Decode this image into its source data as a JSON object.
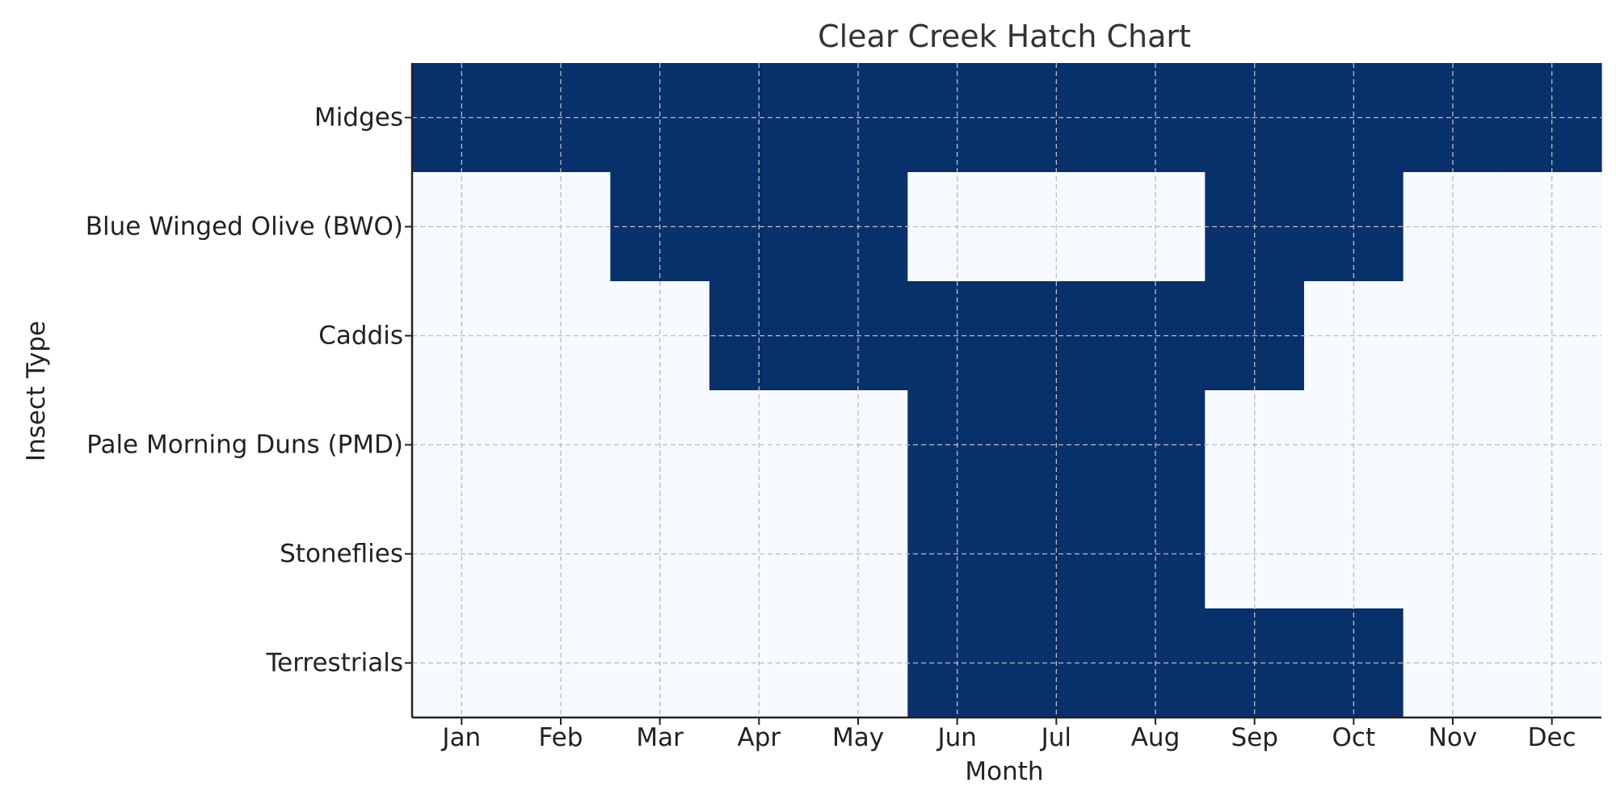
{
  "chart_data": {
    "type": "heatmap",
    "title": "Clear Creek Hatch Chart",
    "xlabel": "Month",
    "ylabel": "Insect Type",
    "x_categories": [
      "Jan",
      "Feb",
      "Mar",
      "Apr",
      "May",
      "Jun",
      "Jul",
      "Aug",
      "Sep",
      "Oct",
      "Nov",
      "Dec"
    ],
    "y_categories": [
      "Midges",
      "Blue Winged Olive (BWO)",
      "Caddis",
      "Pale Morning Duns (PMD)",
      "Stoneflies",
      "Terrestrials"
    ],
    "values": [
      [
        1,
        1,
        1,
        1,
        1,
        1,
        1,
        1,
        1,
        1,
        1,
        1
      ],
      [
        0,
        0,
        1,
        1,
        1,
        0,
        0,
        0,
        1,
        1,
        0,
        0
      ],
      [
        0,
        0,
        0,
        1,
        1,
        1,
        1,
        1,
        1,
        0,
        0,
        0
      ],
      [
        0,
        0,
        0,
        0,
        0,
        1,
        1,
        1,
        0,
        0,
        0,
        0
      ],
      [
        0,
        0,
        0,
        0,
        0,
        1,
        1,
        1,
        0,
        0,
        0,
        0
      ],
      [
        0,
        0,
        0,
        0,
        0,
        1,
        1,
        1,
        1,
        1,
        0,
        0
      ]
    ],
    "colors": {
      "active": "#08306b",
      "inactive": "#f7fbff"
    },
    "grid": true
  }
}
